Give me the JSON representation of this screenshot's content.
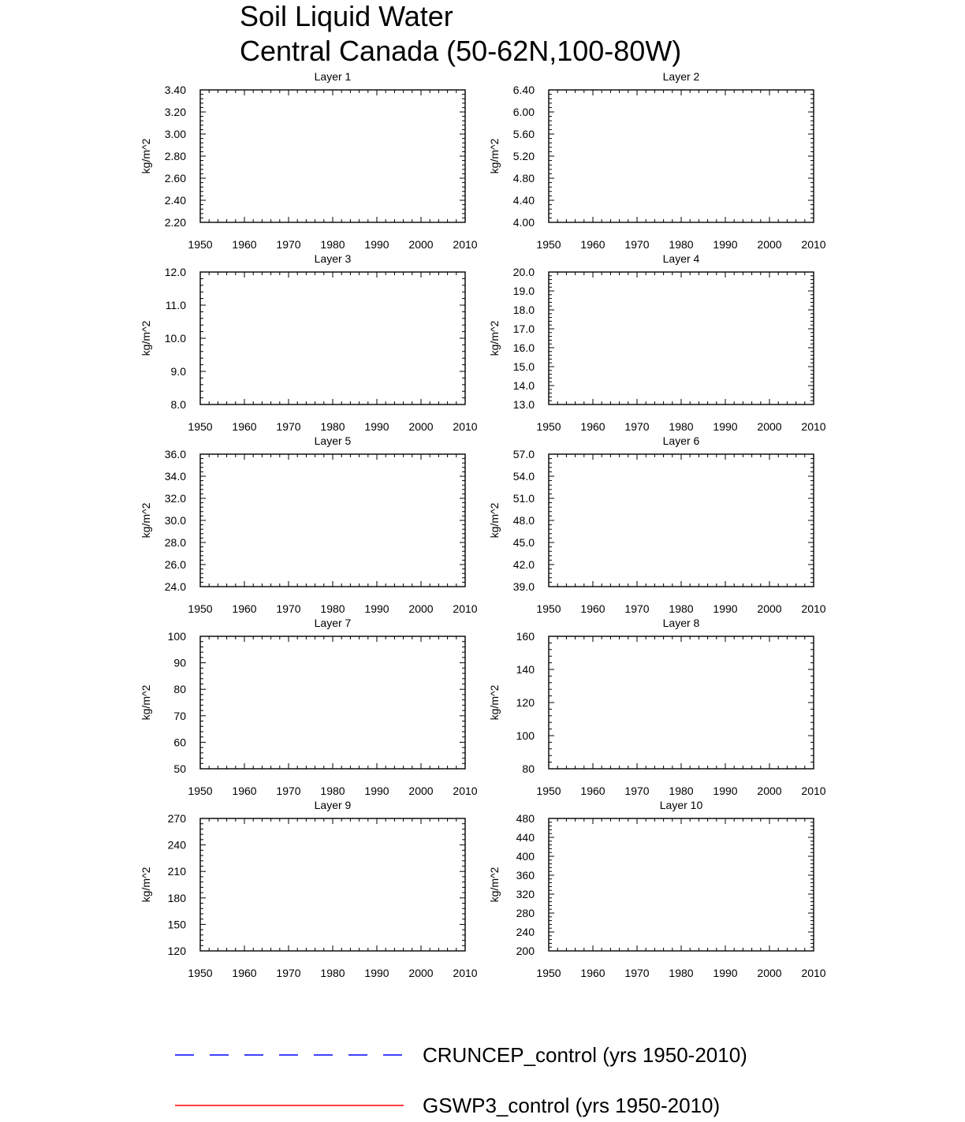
{
  "chart_data": {
    "type": "line",
    "title": "Soil Liquid Water",
    "subtitle": "Central Canada (50-62N,100-80W)",
    "x_ticks": [
      "1950",
      "1960",
      "1970",
      "1980",
      "1990",
      "2000",
      "2010"
    ],
    "xlim": [
      1950,
      2010
    ],
    "legend_position": "bottom",
    "colors": {
      "CRUNCEP_control": "#0000ff",
      "GSWP3_control": "#ff0000"
    },
    "legend": [
      {
        "name": "CRUNCEP_control (yrs 1950-2010)",
        "color": "#0000ff",
        "style": "dashed"
      },
      {
        "name": "GSWP3_control (yrs 1950-2010)",
        "color": "#ff0000",
        "style": "solid"
      }
    ],
    "panels": [
      {
        "title": "Layer 1",
        "ylabel": "kg/m^2",
        "ylim": [
          2.2,
          3.4
        ],
        "y_ticks": [
          "2.20",
          "2.40",
          "2.60",
          "2.80",
          "3.00",
          "3.20",
          "3.40"
        ]
      },
      {
        "title": "Layer 2",
        "ylabel": "kg/m^2",
        "ylim": [
          4.0,
          6.4
        ],
        "y_ticks": [
          "4.00",
          "4.40",
          "4.80",
          "5.20",
          "5.60",
          "6.00",
          "6.40"
        ]
      },
      {
        "title": "Layer 3",
        "ylabel": "kg/m^2",
        "ylim": [
          8.0,
          12.0
        ],
        "y_ticks": [
          "8.0",
          "9.0",
          "10.0",
          "11.0",
          "12.0"
        ]
      },
      {
        "title": "Layer 4",
        "ylabel": "kg/m^2",
        "ylim": [
          13.0,
          20.0
        ],
        "y_ticks": [
          "13.0",
          "14.0",
          "15.0",
          "16.0",
          "17.0",
          "18.0",
          "19.0",
          "20.0"
        ]
      },
      {
        "title": "Layer 5",
        "ylabel": "kg/m^2",
        "ylim": [
          24.0,
          36.0
        ],
        "y_ticks": [
          "24.0",
          "26.0",
          "28.0",
          "30.0",
          "32.0",
          "34.0",
          "36.0"
        ]
      },
      {
        "title": "Layer 6",
        "ylabel": "kg/m^2",
        "ylim": [
          39.0,
          57.0
        ],
        "y_ticks": [
          "39.0",
          "42.0",
          "45.0",
          "48.0",
          "51.0",
          "54.0",
          "57.0"
        ]
      },
      {
        "title": "Layer 7",
        "ylabel": "kg/m^2",
        "ylim": [
          50,
          100
        ],
        "y_ticks": [
          "50",
          "60",
          "70",
          "80",
          "90",
          "100"
        ]
      },
      {
        "title": "Layer 8",
        "ylabel": "kg/m^2",
        "ylim": [
          80,
          160
        ],
        "y_ticks": [
          "80",
          "100",
          "120",
          "140",
          "160"
        ]
      },
      {
        "title": "Layer 9",
        "ylabel": "kg/m^2",
        "ylim": [
          120,
          270
        ],
        "y_ticks": [
          "120",
          "150",
          "180",
          "210",
          "240",
          "270"
        ]
      },
      {
        "title": "Layer 10",
        "ylabel": "kg/m^2",
        "ylim": [
          200,
          480
        ],
        "y_ticks": [
          "200",
          "240",
          "280",
          "320",
          "360",
          "400",
          "440",
          "480"
        ]
      }
    ]
  }
}
